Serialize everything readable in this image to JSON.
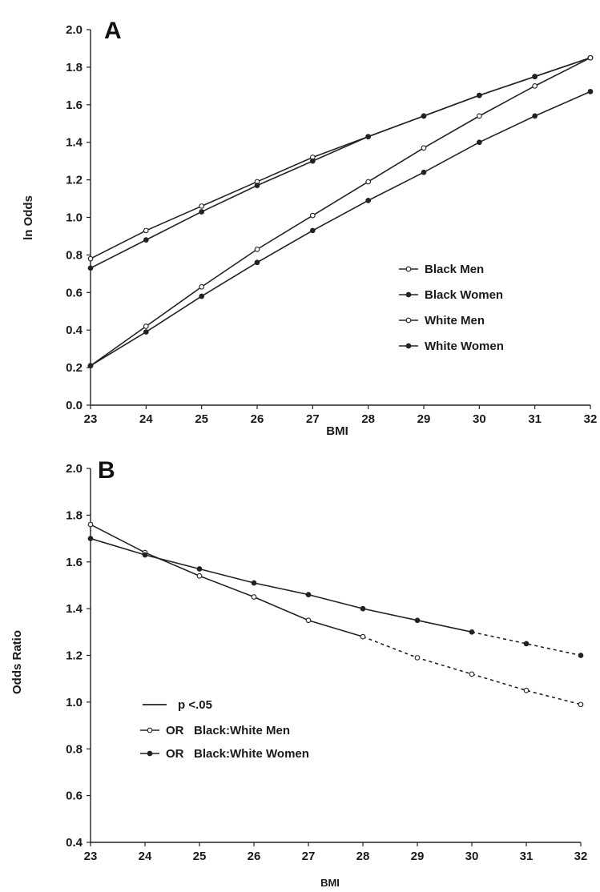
{
  "chart_data": [
    {
      "type": "line",
      "panel": "A",
      "xlabel": "BMI",
      "ylabel": "ln Odds",
      "xlim": [
        23,
        32
      ],
      "ylim": [
        0.0,
        2.0
      ],
      "xticks": [
        "23",
        "24",
        "25",
        "26",
        "27",
        "28",
        "29",
        "30",
        "31",
        "32"
      ],
      "yticks": [
        "0.0",
        "0.2",
        "0.4",
        "0.6",
        "0.8",
        "1.0",
        "1.2",
        "1.4",
        "1.6",
        "1.8",
        "2.0"
      ],
      "x": [
        23,
        24,
        25,
        26,
        27,
        28,
        29,
        30,
        31,
        32
      ],
      "legend_position": "middle-right",
      "series": [
        {
          "name": "Black Men",
          "marker": "open",
          "values": [
            0.78,
            0.93,
            1.06,
            1.19,
            1.32,
            1.43,
            1.54,
            1.65,
            1.75,
            1.85
          ]
        },
        {
          "name": "Black Women",
          "marker": "filled",
          "values": [
            0.73,
            0.88,
            1.03,
            1.17,
            1.3,
            1.43,
            1.54,
            1.65,
            1.75,
            1.85
          ]
        },
        {
          "name": "White Men",
          "marker": "open",
          "values": [
            0.21,
            0.42,
            0.63,
            0.83,
            1.01,
            1.19,
            1.37,
            1.54,
            1.7,
            1.85
          ]
        },
        {
          "name": "White Women",
          "marker": "filled",
          "values": [
            0.21,
            0.39,
            0.58,
            0.76,
            0.93,
            1.09,
            1.24,
            1.4,
            1.54,
            1.67
          ]
        }
      ]
    },
    {
      "type": "line",
      "panel": "B",
      "xlabel": "BMI",
      "ylabel": "Odds Ratio",
      "xlim": [
        23,
        32
      ],
      "ylim": [
        0.4,
        2.0
      ],
      "xticks": [
        "23",
        "24",
        "25",
        "26",
        "27",
        "28",
        "29",
        "30",
        "31",
        "32"
      ],
      "yticks": [
        "0.4",
        "0.6",
        "0.8",
        "1.0",
        "1.2",
        "1.4",
        "1.6",
        "1.8",
        "2.0"
      ],
      "x": [
        23,
        24,
        25,
        26,
        27,
        28,
        29,
        30,
        31,
        32
      ],
      "legend_position": "middle-left",
      "significance_note": "p <.05",
      "series": [
        {
          "name": "OR   Black:White Men",
          "marker": "open",
          "values": [
            1.76,
            1.64,
            1.54,
            1.45,
            1.35,
            1.28,
            1.19,
            1.12,
            1.05,
            0.99
          ],
          "significant_through": 28
        },
        {
          "name": "OR   Black:White Women",
          "marker": "filled",
          "values": [
            1.7,
            1.63,
            1.57,
            1.51,
            1.46,
            1.4,
            1.35,
            1.3,
            1.25,
            1.2
          ],
          "significant_through": 30
        }
      ]
    }
  ]
}
